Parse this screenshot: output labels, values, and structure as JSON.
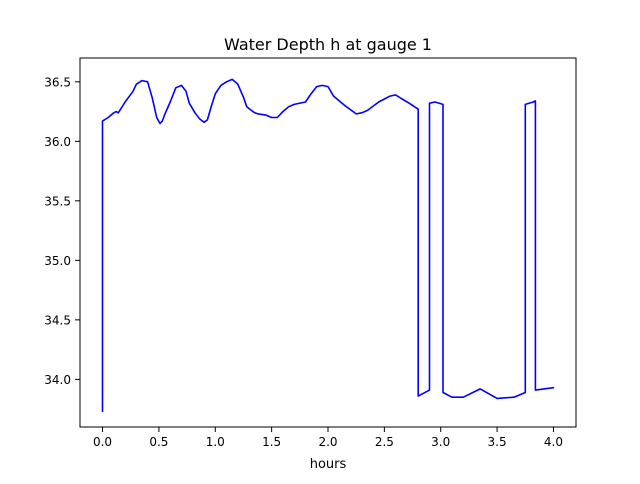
{
  "chart_data": {
    "type": "line",
    "title": "Water Depth h at gauge 1",
    "xlabel": "hours",
    "ylabel": "",
    "xlim": [
      -0.2,
      4.2
    ],
    "ylim": [
      33.6,
      36.7
    ],
    "xticks": [
      0.0,
      0.5,
      1.0,
      1.5,
      2.0,
      2.5,
      3.0,
      3.5,
      4.0
    ],
    "xtick_labels": [
      "0.0",
      "0.5",
      "1.0",
      "1.5",
      "2.0",
      "2.5",
      "3.0",
      "3.5",
      "4.0"
    ],
    "yticks": [
      34.0,
      34.5,
      35.0,
      35.5,
      36.0,
      36.5
    ],
    "ytick_labels": [
      "34.0",
      "34.5",
      "35.0",
      "35.5",
      "36.0",
      "36.5"
    ],
    "grid": false,
    "series": [
      {
        "name": "",
        "color": "#0000ff",
        "x": [
          0.0,
          0.0,
          0.05,
          0.1,
          0.12,
          0.14,
          0.2,
          0.27,
          0.3,
          0.35,
          0.4,
          0.44,
          0.48,
          0.51,
          0.53,
          0.55,
          0.6,
          0.65,
          0.7,
          0.74,
          0.77,
          0.82,
          0.86,
          0.9,
          0.93,
          0.96,
          1.0,
          1.05,
          1.1,
          1.15,
          1.2,
          1.25,
          1.28,
          1.32,
          1.35,
          1.38,
          1.45,
          1.5,
          1.55,
          1.6,
          1.65,
          1.7,
          1.8,
          1.85,
          1.9,
          1.95,
          2.0,
          2.05,
          2.15,
          2.25,
          2.3,
          2.35,
          2.45,
          2.55,
          2.6,
          2.65,
          2.72,
          2.8,
          2.8,
          2.9,
          2.9,
          2.95,
          3.02,
          3.02,
          3.1,
          3.2,
          3.35,
          3.5,
          3.65,
          3.75,
          3.75,
          3.82,
          3.84,
          3.84,
          4.0
        ],
        "y": [
          33.73,
          36.17,
          36.2,
          36.24,
          36.25,
          36.24,
          36.33,
          36.42,
          36.48,
          36.51,
          36.5,
          36.37,
          36.2,
          36.15,
          36.17,
          36.22,
          36.33,
          36.45,
          36.47,
          36.42,
          36.32,
          36.24,
          36.19,
          36.16,
          36.18,
          36.28,
          36.4,
          36.47,
          36.5,
          36.52,
          36.48,
          36.37,
          36.29,
          36.26,
          36.24,
          36.23,
          36.22,
          36.2,
          36.2,
          36.25,
          36.29,
          36.31,
          36.33,
          36.4,
          36.46,
          36.47,
          36.46,
          36.38,
          36.3,
          36.23,
          36.24,
          36.26,
          36.33,
          36.38,
          36.39,
          36.36,
          36.32,
          36.27,
          33.86,
          33.91,
          36.32,
          36.33,
          36.31,
          33.89,
          33.85,
          33.85,
          33.92,
          33.84,
          33.85,
          33.89,
          36.31,
          36.33,
          36.34,
          33.91,
          33.93
        ]
      }
    ]
  }
}
